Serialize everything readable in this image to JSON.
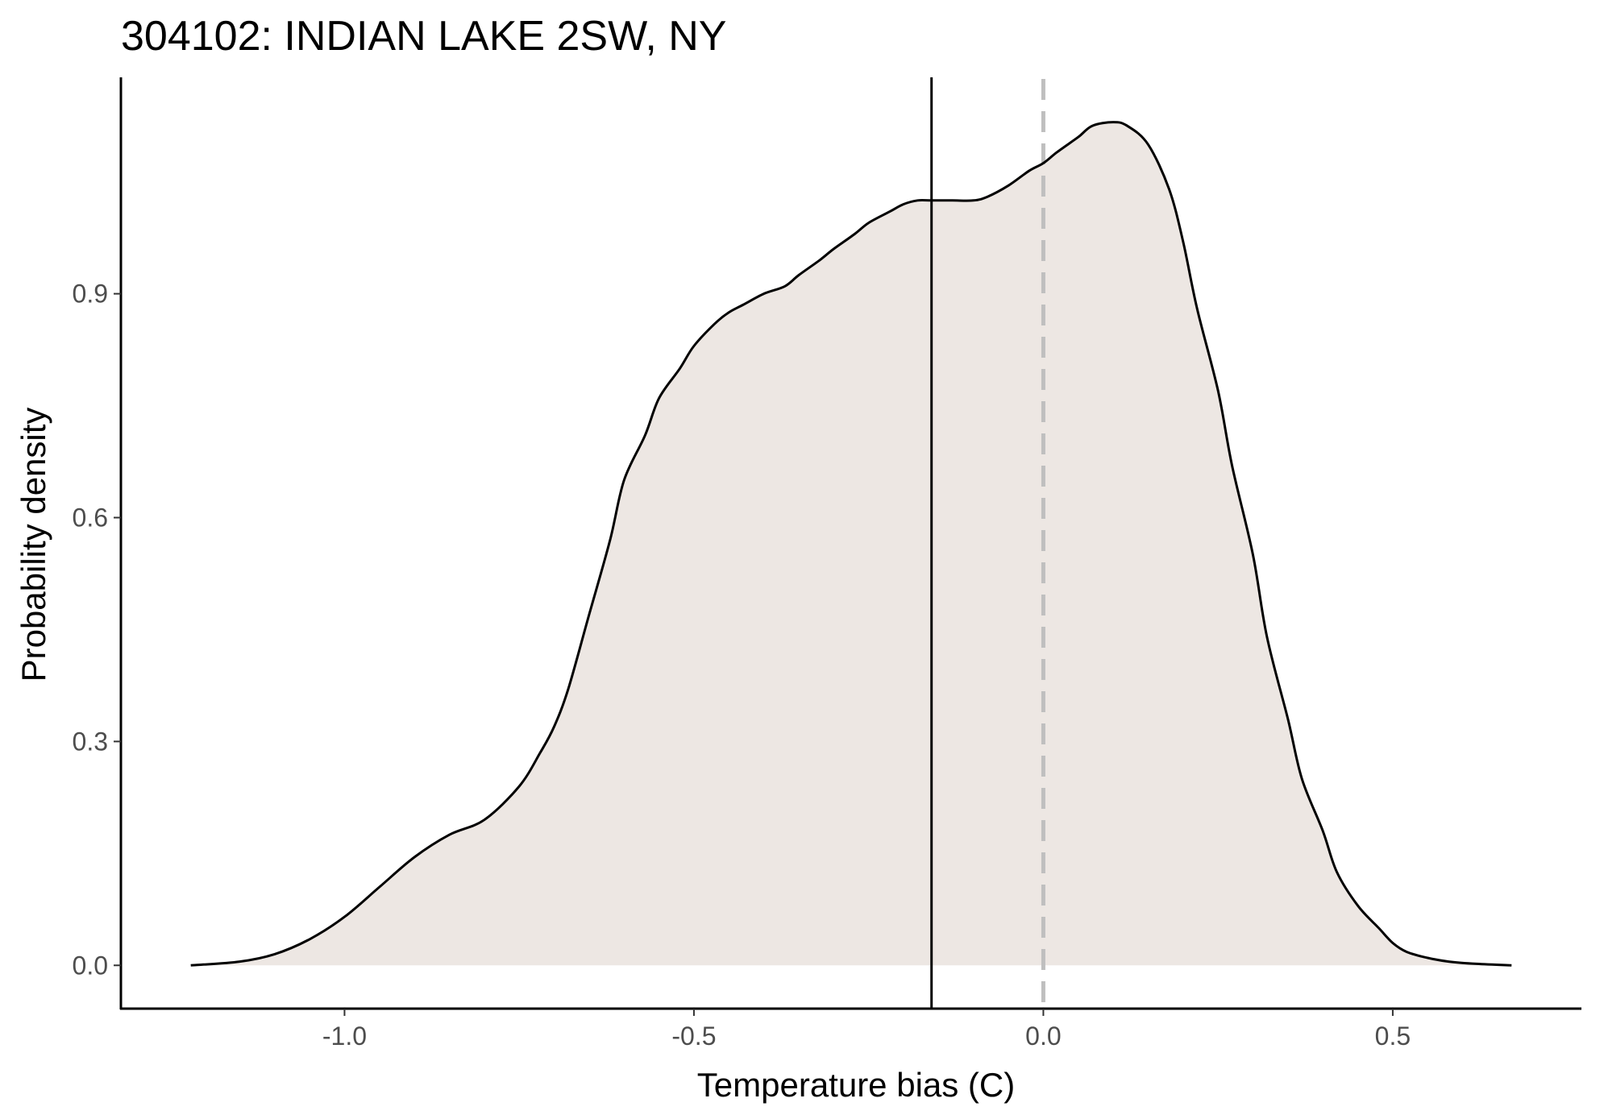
{
  "chart_data": {
    "type": "area",
    "title": "304102: INDIAN LAKE 2SW, NY",
    "xlabel": "Temperature bias (C)",
    "ylabel": "Probability density",
    "xlim": [
      -1.32,
      0.77
    ],
    "ylim": [
      -0.058,
      1.19
    ],
    "x_ticks": [
      -1.0,
      -0.5,
      0.0,
      0.5
    ],
    "x_tick_labels": [
      "-1.0",
      "-0.5",
      "0.0",
      "0.5"
    ],
    "y_ticks": [
      0.0,
      0.3,
      0.6,
      0.9
    ],
    "y_tick_labels": [
      "0.0",
      "0.3",
      "0.6",
      "0.9"
    ],
    "grid": false,
    "legend": "none",
    "fill_color": "#ede7e3",
    "line_color": "#000000",
    "mean_line": {
      "x": -0.16,
      "color": "#000000",
      "style": "solid"
    },
    "reference_line": {
      "x": 0.0,
      "color": "#bfbfbf",
      "style": "dashed"
    },
    "series": [
      {
        "x": [
          -1.22,
          -1.15,
          -1.1,
          -1.05,
          -1.0,
          -0.95,
          -0.9,
          -0.85,
          -0.8,
          -0.75,
          -0.72,
          -0.7,
          -0.68,
          -0.65,
          -0.62,
          -0.6,
          -0.57,
          -0.55,
          -0.52,
          -0.5,
          -0.47,
          -0.45,
          -0.43,
          -0.4,
          -0.37,
          -0.35,
          -0.32,
          -0.3,
          -0.27,
          -0.25,
          -0.22,
          -0.2,
          -0.18,
          -0.16,
          -0.13,
          -0.1,
          -0.08,
          -0.05,
          -0.02,
          0.0,
          0.02,
          0.05,
          0.07,
          0.1,
          0.12,
          0.15,
          0.18,
          0.2,
          0.22,
          0.25,
          0.27,
          0.3,
          0.32,
          0.35,
          0.37,
          0.4,
          0.42,
          0.45,
          0.48,
          0.5,
          0.52,
          0.55,
          0.58,
          0.62,
          0.67
        ],
        "y": [
          0.0,
          0.005,
          0.015,
          0.035,
          0.065,
          0.105,
          0.145,
          0.175,
          0.195,
          0.24,
          0.285,
          0.32,
          0.37,
          0.47,
          0.57,
          0.65,
          0.71,
          0.76,
          0.8,
          0.83,
          0.86,
          0.875,
          0.885,
          0.9,
          0.91,
          0.925,
          0.945,
          0.96,
          0.98,
          0.995,
          1.01,
          1.02,
          1.025,
          1.025,
          1.025,
          1.025,
          1.03,
          1.045,
          1.065,
          1.075,
          1.09,
          1.11,
          1.125,
          1.13,
          1.125,
          1.1,
          1.04,
          0.97,
          0.88,
          0.77,
          0.67,
          0.55,
          0.44,
          0.33,
          0.25,
          0.18,
          0.125,
          0.08,
          0.05,
          0.03,
          0.018,
          0.01,
          0.005,
          0.002,
          0.0
        ]
      }
    ]
  }
}
